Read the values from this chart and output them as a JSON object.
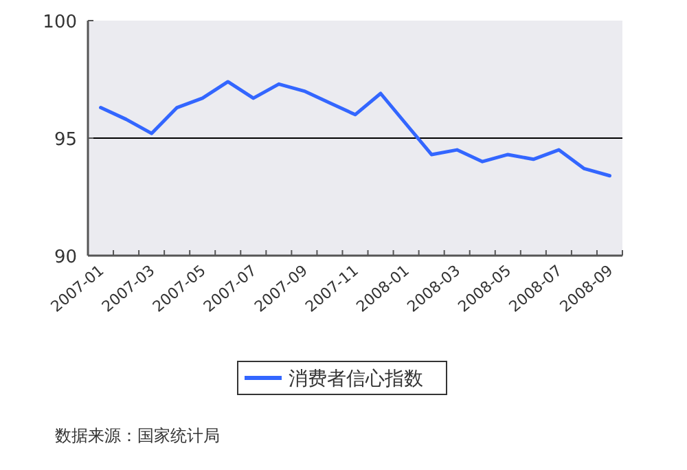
{
  "chart_data": {
    "type": "line",
    "categories": [
      "2007-01",
      null,
      "2007-03",
      null,
      "2007-05",
      null,
      "2007-07",
      null,
      "2007-09",
      null,
      "2007-11",
      null,
      "2008-01",
      null,
      "2008-03",
      null,
      "2008-05",
      null,
      "2008-07",
      null,
      "2008-09"
    ],
    "series": [
      {
        "name": "消费者信心指数",
        "color": "#3366ff",
        "values": [
          96.3,
          95.8,
          95.2,
          96.3,
          96.7,
          97.4,
          96.7,
          97.3,
          97.0,
          96.5,
          96.0,
          96.9,
          95.6,
          94.3,
          94.5,
          94.0,
          94.3,
          94.1,
          94.5,
          93.7,
          93.4
        ]
      }
    ],
    "ylim": [
      90,
      100
    ],
    "yticks": [
      90,
      95,
      100
    ],
    "ref_lines": [
      {
        "axis": "y",
        "value": 95,
        "color": "#000000"
      }
    ],
    "grid": false,
    "legend": "bottom",
    "annotations": [
      "数据来源：国家统计局"
    ]
  }
}
